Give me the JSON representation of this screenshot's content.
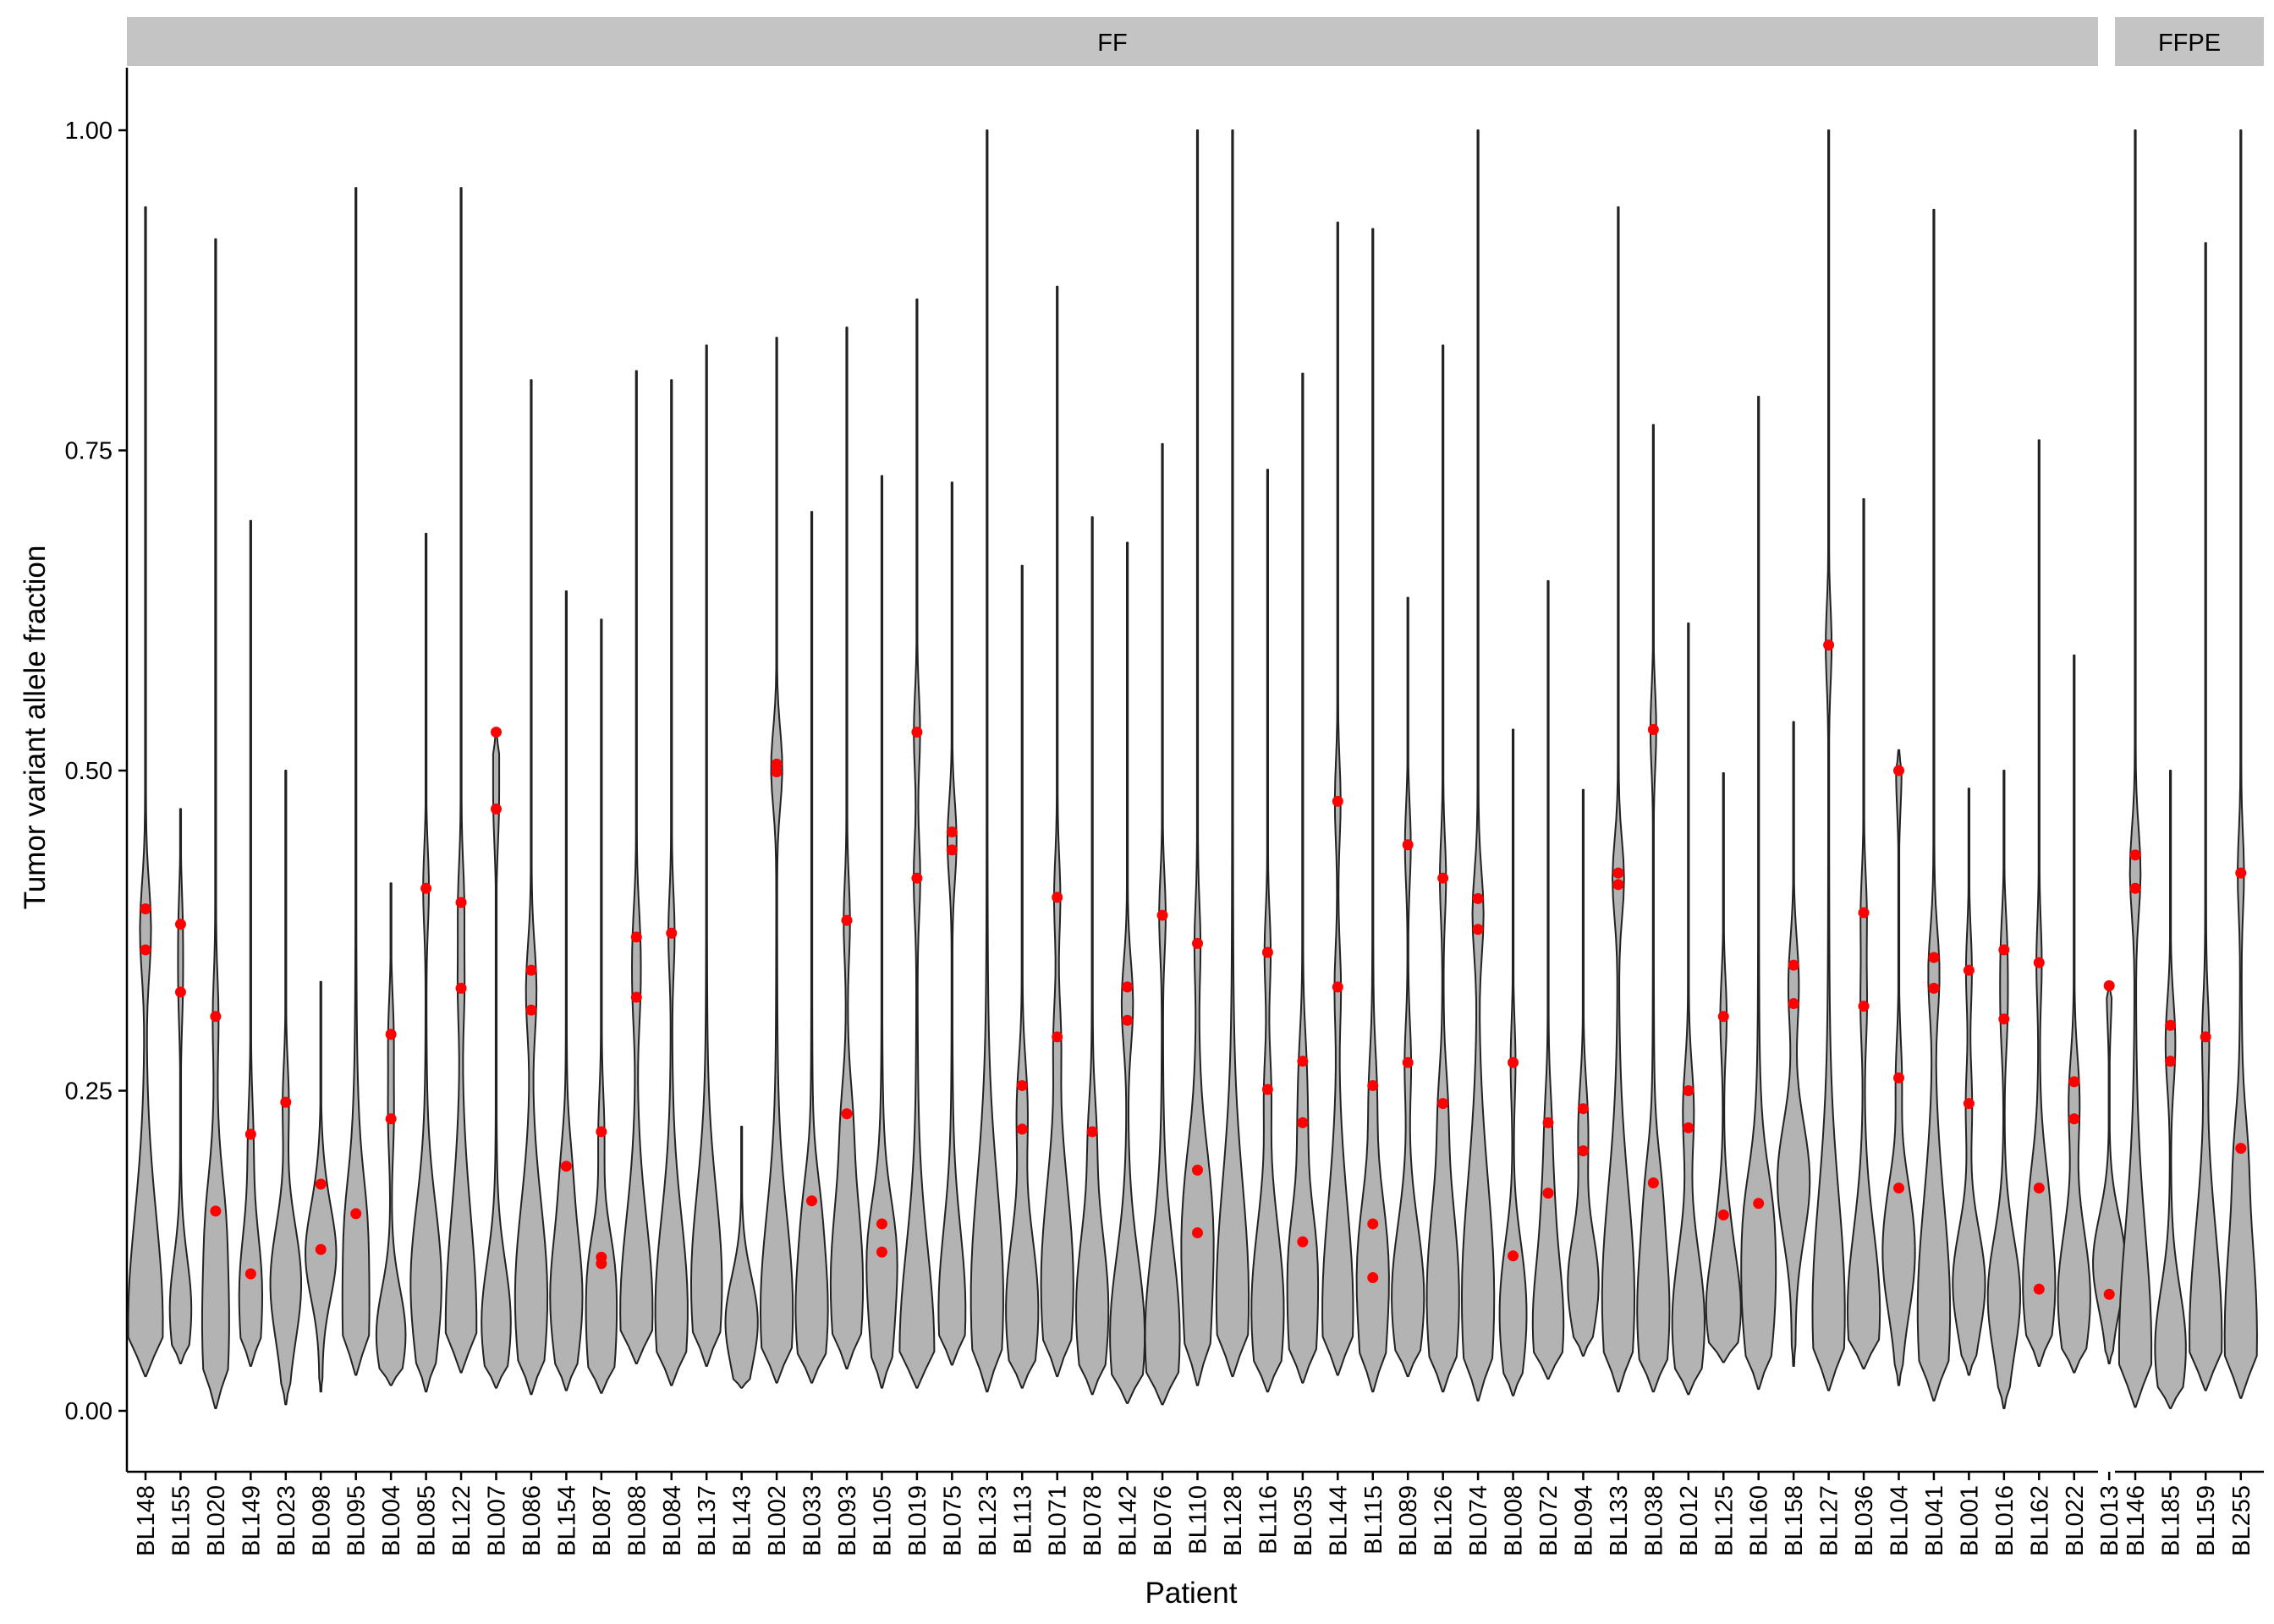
{
  "chart_data": {
    "type": "violin",
    "facets": [
      "FF",
      "FFPE"
    ],
    "xlabel": "Patient",
    "ylabel": "Tumor variant allele fraction",
    "ylim": [
      0,
      1
    ],
    "yticks": [
      0.0,
      0.25,
      0.5,
      0.75,
      1.0
    ],
    "ytick_labels": [
      "0.00",
      "0.25",
      "0.50",
      "0.75",
      "1.00"
    ],
    "grid": false,
    "violin_fill": "#b3b3b3",
    "violin_outline": "#222222",
    "highlight_color": "#ff0000",
    "strip_color": "#c4c4c4",
    "patients": [
      {
        "id": "BL148",
        "facet": "FF",
        "min": 0.027,
        "max": 0.94,
        "mode": 0.07,
        "hw": 0.45,
        "points": [
          0.392,
          0.36
        ]
      },
      {
        "id": "BL155",
        "facet": "FF",
        "min": 0.037,
        "max": 0.47,
        "mode": 0.08,
        "hw": 0.28,
        "points": [
          0.38,
          0.327
        ]
      },
      {
        "id": "BL020",
        "facet": "FF",
        "min": 0.002,
        "max": 0.915,
        "mode": 0.07,
        "hw": 0.35,
        "points": [
          0.308,
          0.156
        ]
      },
      {
        "id": "BL149",
        "facet": "FF",
        "min": 0.035,
        "max": 0.695,
        "mode": 0.08,
        "hw": 0.3,
        "points": [
          0.216,
          0.107
        ]
      },
      {
        "id": "BL023",
        "facet": "FF",
        "min": 0.005,
        "max": 0.5,
        "mode": 0.1,
        "hw": 0.4,
        "points": [
          0.241
        ]
      },
      {
        "id": "BL098",
        "facet": "FF",
        "min": 0.015,
        "max": 0.335,
        "mode": 0.12,
        "hw": 0.4,
        "points": [
          0.177,
          0.126
        ]
      },
      {
        "id": "BL095",
        "facet": "FF",
        "min": 0.028,
        "max": 0.955,
        "mode": 0.08,
        "hw": 0.35,
        "points": [
          0.154
        ]
      },
      {
        "id": "BL004",
        "facet": "FF",
        "min": 0.02,
        "max": 0.412,
        "mode": 0.06,
        "hw": 0.38,
        "points": [
          0.294,
          0.228
        ]
      },
      {
        "id": "BL085",
        "facet": "FF",
        "min": 0.015,
        "max": 0.685,
        "mode": 0.1,
        "hw": 0.4,
        "points": [
          0.408
        ]
      },
      {
        "id": "BL122",
        "facet": "FF",
        "min": 0.03,
        "max": 0.955,
        "mode": 0.07,
        "hw": 0.4,
        "points": [
          0.397,
          0.33
        ]
      },
      {
        "id": "BL007",
        "facet": "FF",
        "min": 0.018,
        "max": 0.53,
        "mode": 0.07,
        "hw": 0.38,
        "points": [
          0.53,
          0.47
        ]
      },
      {
        "id": "BL086",
        "facet": "FF",
        "min": 0.013,
        "max": 0.805,
        "mode": 0.09,
        "hw": 0.42,
        "points": [
          0.344,
          0.313
        ]
      },
      {
        "id": "BL154",
        "facet": "FF",
        "min": 0.016,
        "max": 0.64,
        "mode": 0.09,
        "hw": 0.42,
        "points": [
          0.191
        ]
      },
      {
        "id": "BL087",
        "facet": "FF",
        "min": 0.014,
        "max": 0.618,
        "mode": 0.06,
        "hw": 0.4,
        "points": [
          0.218,
          0.12,
          0.115
        ]
      },
      {
        "id": "BL088",
        "facet": "FF",
        "min": 0.037,
        "max": 0.812,
        "mode": 0.08,
        "hw": 0.42,
        "points": [
          0.37,
          0.323
        ]
      },
      {
        "id": "BL084",
        "facet": "FF",
        "min": 0.02,
        "max": 0.805,
        "mode": 0.08,
        "hw": 0.42,
        "points": [
          0.373
        ]
      },
      {
        "id": "BL137",
        "facet": "FF",
        "min": 0.035,
        "max": 0.832,
        "mode": 0.1,
        "hw": 0.4,
        "points": []
      },
      {
        "id": "BL143",
        "facet": "FF",
        "min": 0.018,
        "max": 0.222,
        "mode": 0.07,
        "hw": 0.42,
        "points": []
      },
      {
        "id": "BL002",
        "facet": "FF",
        "min": 0.022,
        "max": 0.838,
        "mode": 0.08,
        "hw": 0.42,
        "points": [
          0.505,
          0.499
        ]
      },
      {
        "id": "BL033",
        "facet": "FF",
        "min": 0.022,
        "max": 0.702,
        "mode": 0.08,
        "hw": 0.42,
        "points": [
          0.164
        ]
      },
      {
        "id": "BL093",
        "facet": "FF",
        "min": 0.033,
        "max": 0.846,
        "mode": 0.1,
        "hw": 0.42,
        "points": [
          0.383,
          0.232
        ]
      },
      {
        "id": "BL105",
        "facet": "FF",
        "min": 0.018,
        "max": 0.73,
        "mode": 0.09,
        "hw": 0.4,
        "points": [
          0.146,
          0.124
        ]
      },
      {
        "id": "BL019",
        "facet": "FF",
        "min": 0.018,
        "max": 0.868,
        "mode": 0.05,
        "hw": 0.45,
        "points": [
          0.53,
          0.416
        ]
      },
      {
        "id": "BL075",
        "facet": "FF",
        "min": 0.036,
        "max": 0.725,
        "mode": 0.08,
        "hw": 0.35,
        "points": [
          0.452,
          0.438
        ]
      },
      {
        "id": "BL123",
        "facet": "FF",
        "min": 0.015,
        "max": 1.0,
        "mode": 0.09,
        "hw": 0.42,
        "points": []
      },
      {
        "id": "BL113",
        "facet": "FF",
        "min": 0.018,
        "max": 0.66,
        "mode": 0.08,
        "hw": 0.42,
        "points": [
          0.254,
          0.22
        ]
      },
      {
        "id": "BL071",
        "facet": "FF",
        "min": 0.027,
        "max": 0.878,
        "mode": 0.1,
        "hw": 0.42,
        "points": [
          0.401,
          0.292
        ]
      },
      {
        "id": "BL078",
        "facet": "FF",
        "min": 0.013,
        "max": 0.698,
        "mode": 0.08,
        "hw": 0.42,
        "points": [
          0.218
        ]
      },
      {
        "id": "BL142",
        "facet": "FF",
        "min": 0.006,
        "max": 0.678,
        "mode": 0.06,
        "hw": 0.45,
        "points": [
          0.331,
          0.305
        ]
      },
      {
        "id": "BL076",
        "facet": "FF",
        "min": 0.005,
        "max": 0.755,
        "mode": 0.06,
        "hw": 0.45,
        "points": [
          0.387
        ]
      },
      {
        "id": "BL110",
        "facet": "FF",
        "min": 0.02,
        "max": 1.0,
        "mode": 0.1,
        "hw": 0.42,
        "points": [
          0.365,
          0.188,
          0.139
        ]
      },
      {
        "id": "BL128",
        "facet": "FF",
        "min": 0.027,
        "max": 1.0,
        "mode": 0.09,
        "hw": 0.42,
        "points": []
      },
      {
        "id": "BL116",
        "facet": "FF",
        "min": 0.015,
        "max": 0.735,
        "mode": 0.08,
        "hw": 0.42,
        "points": [
          0.358,
          0.251
        ]
      },
      {
        "id": "BL035",
        "facet": "FF",
        "min": 0.022,
        "max": 0.81,
        "mode": 0.08,
        "hw": 0.4,
        "points": [
          0.273,
          0.225,
          0.132
        ]
      },
      {
        "id": "BL144",
        "facet": "FF",
        "min": 0.028,
        "max": 0.928,
        "mode": 0.08,
        "hw": 0.4,
        "points": [
          0.476,
          0.331
        ]
      },
      {
        "id": "BL115",
        "facet": "FF",
        "min": 0.015,
        "max": 0.923,
        "mode": 0.08,
        "hw": 0.42,
        "points": [
          0.254,
          0.146,
          0.104
        ]
      },
      {
        "id": "BL089",
        "facet": "FF",
        "min": 0.027,
        "max": 0.635,
        "mode": 0.09,
        "hw": 0.42,
        "points": [
          0.442,
          0.272
        ]
      },
      {
        "id": "BL126",
        "facet": "FF",
        "min": 0.015,
        "max": 0.832,
        "mode": 0.09,
        "hw": 0.42,
        "points": [
          0.416,
          0.24
        ]
      },
      {
        "id": "BL074",
        "facet": "FF",
        "min": 0.008,
        "max": 1.0,
        "mode": 0.09,
        "hw": 0.42,
        "points": [
          0.4,
          0.376
        ]
      },
      {
        "id": "BL008",
        "facet": "FF",
        "min": 0.012,
        "max": 0.532,
        "mode": 0.07,
        "hw": 0.35,
        "points": [
          0.272,
          0.121
        ]
      },
      {
        "id": "BL072",
        "facet": "FF",
        "min": 0.025,
        "max": 0.648,
        "mode": 0.07,
        "hw": 0.4,
        "points": [
          0.225,
          0.17
        ]
      },
      {
        "id": "BL094",
        "facet": "FF",
        "min": 0.043,
        "max": 0.485,
        "mode": 0.1,
        "hw": 0.4,
        "points": [
          0.236,
          0.203
        ]
      },
      {
        "id": "BL133",
        "facet": "FF",
        "min": 0.015,
        "max": 0.94,
        "mode": 0.09,
        "hw": 0.42,
        "points": [
          0.42,
          0.411
        ]
      },
      {
        "id": "BL038",
        "facet": "FF",
        "min": 0.015,
        "max": 0.77,
        "mode": 0.08,
        "hw": 0.42,
        "points": [
          0.532,
          0.178
        ]
      },
      {
        "id": "BL012",
        "facet": "FF",
        "min": 0.013,
        "max": 0.615,
        "mode": 0.07,
        "hw": 0.42,
        "points": [
          0.25,
          0.221
        ]
      },
      {
        "id": "BL125",
        "facet": "FF",
        "min": 0.038,
        "max": 0.498,
        "mode": 0.08,
        "hw": 0.45,
        "points": [
          0.308,
          0.153
        ]
      },
      {
        "id": "BL160",
        "facet": "FF",
        "min": 0.017,
        "max": 0.792,
        "mode": 0.1,
        "hw": 0.45,
        "points": [
          0.162
        ]
      },
      {
        "id": "BL158",
        "facet": "FF",
        "min": 0.035,
        "max": 0.538,
        "mode": 0.18,
        "hw": 0.42,
        "points": [
          0.348,
          0.318
        ]
      },
      {
        "id": "BL127",
        "facet": "FF",
        "min": 0.016,
        "max": 1.0,
        "mode": 0.08,
        "hw": 0.42,
        "points": [
          0.598
        ]
      },
      {
        "id": "BL036",
        "facet": "FF",
        "min": 0.033,
        "max": 0.712,
        "mode": 0.08,
        "hw": 0.42,
        "points": [
          0.389,
          0.316
        ]
      },
      {
        "id": "BL104",
        "facet": "FF",
        "min": 0.02,
        "max": 0.516,
        "mode": 0.12,
        "hw": 0.42,
        "points": [
          0.5,
          0.26,
          0.174
        ]
      },
      {
        "id": "BL041",
        "facet": "FF",
        "min": 0.008,
        "max": 0.938,
        "mode": 0.08,
        "hw": 0.42,
        "points": [
          0.354,
          0.33
        ]
      },
      {
        "id": "BL001",
        "facet": "FF",
        "min": 0.028,
        "max": 0.486,
        "mode": 0.1,
        "hw": 0.42,
        "points": [
          0.344,
          0.24
        ]
      },
      {
        "id": "BL016",
        "facet": "FF",
        "min": 0.002,
        "max": 0.5,
        "mode": 0.09,
        "hw": 0.42,
        "points": [
          0.36,
          0.306
        ]
      },
      {
        "id": "BL162",
        "facet": "FF",
        "min": 0.035,
        "max": 0.758,
        "mode": 0.1,
        "hw": 0.42,
        "points": [
          0.35,
          0.174,
          0.095
        ]
      },
      {
        "id": "BL022",
        "facet": "FF",
        "min": 0.03,
        "max": 0.59,
        "mode": 0.09,
        "hw": 0.42,
        "points": [
          0.257,
          0.228
        ]
      },
      {
        "id": "BL013",
        "facet": "FF",
        "min": 0.037,
        "max": 0.332,
        "mode": 0.12,
        "hw": 0.42,
        "points": [
          0.332,
          0.091
        ]
      },
      {
        "id": "BL146",
        "facet": "FFPE",
        "min": 0.003,
        "max": 1.0,
        "mode": 0.05,
        "hw": 0.42,
        "points": [
          0.434,
          0.408
        ]
      },
      {
        "id": "BL185",
        "facet": "FFPE",
        "min": 0.002,
        "max": 0.5,
        "mode": 0.05,
        "hw": 0.4,
        "points": [
          0.301,
          0.273
        ]
      },
      {
        "id": "BL159",
        "facet": "FFPE",
        "min": 0.016,
        "max": 0.912,
        "mode": 0.06,
        "hw": 0.42,
        "points": [
          0.292
        ]
      },
      {
        "id": "BL255",
        "facet": "FFPE",
        "min": 0.01,
        "max": 1.0,
        "mode": 0.06,
        "hw": 0.42,
        "points": [
          0.42,
          0.205
        ]
      }
    ]
  }
}
